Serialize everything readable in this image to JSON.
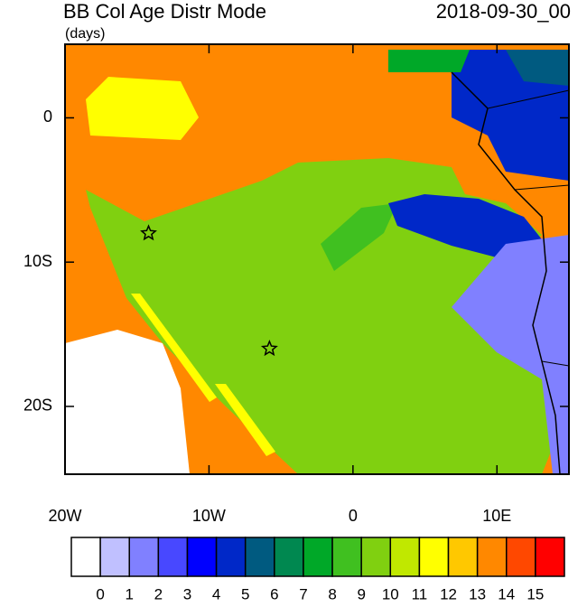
{
  "title": "BB Col Age Distr Mode",
  "subtitle": "(days)",
  "date": "2018-09-30_00",
  "map": {
    "xlim": [
      -20,
      15
    ],
    "ylim": [
      -24.7,
      5.1
    ],
    "xticks": [
      {
        "value": -20,
        "label": "20W"
      },
      {
        "value": -10,
        "label": "10W"
      },
      0,
      {
        "value": 10,
        "label": "10E"
      }
    ],
    "yticks": [
      0,
      {
        "value": -10,
        "label": "10S"
      },
      {
        "value": -20,
        "label": "20S"
      }
    ],
    "stations": [
      {
        "lon": -14.2,
        "lat": -8.0
      },
      {
        "lon": -5.8,
        "lat": -16.0
      }
    ]
  },
  "colorbar": {
    "colors": [
      "#ffffff",
      "#c0c0ff",
      "#8080ff",
      "#4848ff",
      "#0000ff",
      "#0028c8",
      "#005a80",
      "#008850",
      "#00a828",
      "#40c020",
      "#80d010",
      "#c0e800",
      "#ffff00",
      "#ffc800",
      "#ff8800",
      "#ff4800",
      "#ff0000"
    ],
    "levels": [
      0,
      1,
      2,
      3,
      4,
      5,
      6,
      7,
      8,
      9,
      10,
      11,
      12,
      13,
      14,
      15
    ]
  }
}
